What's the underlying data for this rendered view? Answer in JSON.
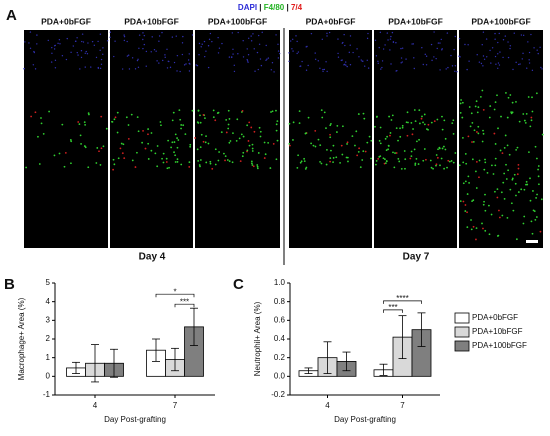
{
  "figure": {
    "panel_a": {
      "letter": "A",
      "stain": [
        "DAPI",
        "|",
        "F4/80",
        "|",
        "7/4"
      ],
      "columns": [
        "PDA+0bFGF",
        "PDA+10bFGF",
        "PDA+100bFGF",
        "PDA+0bFGF",
        "PDA+10bFGF",
        "PDA+100bFGF"
      ],
      "days": [
        "Day 4",
        "Day 7"
      ]
    },
    "legend": [
      "PDA+0bFGF",
      "PDA+10bFGF",
      "PDA+100bFGF"
    ]
  },
  "chart_data": [
    {
      "type": "bar",
      "letter": "B",
      "ylabel": "Macrophage+ Area (%)",
      "xlabel": "Day Post-grafting",
      "categories": [
        "4",
        "7"
      ],
      "ylim": [
        -1,
        5
      ],
      "yticks": [
        -1,
        0,
        1,
        2,
        3,
        4,
        5
      ],
      "series": [
        {
          "color": "#ffffff",
          "values": [
            0.45,
            1.4
          ],
          "errors": [
            0.3,
            0.6
          ]
        },
        {
          "color": "#d9d9d9",
          "values": [
            0.7,
            0.9
          ],
          "errors": [
            1.0,
            0.6
          ]
        },
        {
          "color": "#7f7f7f",
          "values": [
            0.7,
            2.65
          ],
          "errors": [
            0.75,
            1.0
          ]
        }
      ],
      "annotations": [
        "*",
        "***"
      ]
    },
    {
      "type": "bar",
      "letter": "C",
      "ylabel": "Neutrophil+ Area (%)",
      "xlabel": "Day Post-grafting",
      "categories": [
        "4",
        "7"
      ],
      "ylim": [
        -0.2,
        1.0
      ],
      "yticks": [
        -0.2,
        {
          "value": 0,
          "label": "0.0"
        },
        0.2,
        0.4,
        0.6,
        0.8,
        {
          "value": 1,
          "label": "1.0"
        }
      ],
      "series": [
        {
          "color": "#ffffff",
          "values": [
            0.06,
            0.07
          ],
          "errors": [
            0.03,
            0.06
          ]
        },
        {
          "color": "#d9d9d9",
          "values": [
            0.2,
            0.42
          ],
          "errors": [
            0.17,
            0.23
          ]
        },
        {
          "color": "#7f7f7f",
          "values": [
            0.16,
            0.5
          ],
          "errors": [
            0.1,
            0.18
          ]
        }
      ],
      "annotations": [
        "****",
        "***"
      ]
    }
  ]
}
